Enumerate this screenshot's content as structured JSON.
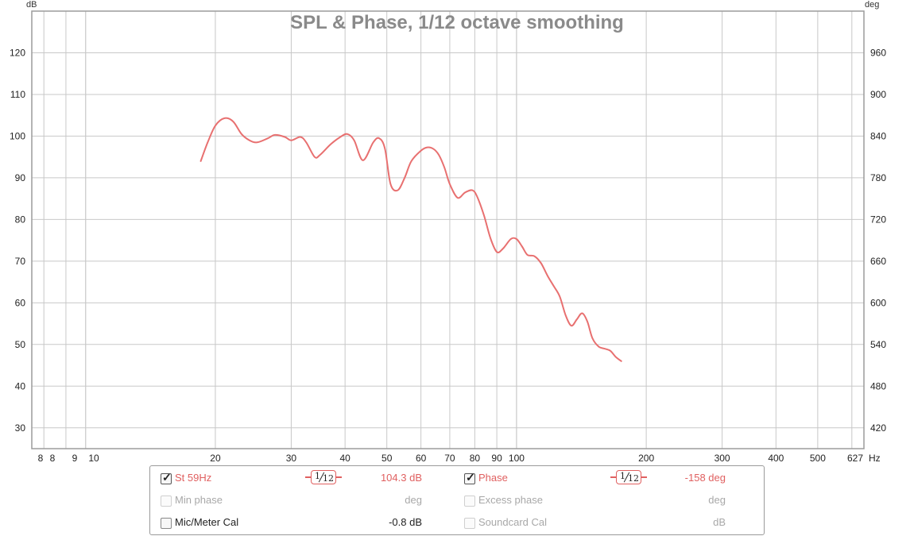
{
  "chart_data": {
    "type": "line",
    "title": "SPL & Phase, 1/12 octave smoothing",
    "x_unit": "Hz",
    "x_scale": "log",
    "x_range": [
      7.5,
      640
    ],
    "x_ticks": [
      "8",
      "8",
      "9",
      "10",
      "20",
      "30",
      "40",
      "50",
      "60",
      "70",
      "80",
      "90",
      "100",
      "200",
      "300",
      "400",
      "500",
      "627"
    ],
    "y_left_unit": "dB",
    "y_left_range": [
      25,
      130
    ],
    "y_left_ticks": [
      30,
      40,
      50,
      60,
      70,
      80,
      90,
      100,
      110,
      120
    ],
    "y_right_unit": "deg",
    "y_right_range": [
      390,
      1020
    ],
    "y_right_ticks": [
      420,
      480,
      540,
      600,
      660,
      720,
      780,
      840,
      900,
      960
    ],
    "grid": true,
    "series": [
      {
        "name": "St 59Hz",
        "color": "#e87070",
        "x": [
          18.5,
          19.2,
          20,
          21,
          22,
          23,
          24,
          25,
          26.5,
          27.5,
          29,
          30,
          31.5,
          32.5,
          34,
          35,
          37,
          39,
          40.5,
          42,
          44,
          46.5,
          48,
          49.5,
          51,
          53,
          55,
          57,
          60,
          62,
          64,
          66,
          68,
          70,
          73,
          76,
          79,
          81,
          84,
          87,
          90,
          93,
          97,
          100,
          103,
          106,
          110,
          114,
          118,
          122,
          126,
          130,
          134,
          138,
          142,
          146,
          150,
          155,
          160,
          165,
          170,
          175
        ],
        "values": [
          94,
          98.5,
          102.5,
          104.3,
          103.5,
          100.5,
          99,
          98.5,
          99.5,
          100.3,
          99.8,
          99,
          99.8,
          98.5,
          95,
          95.5,
          98,
          99.8,
          100.5,
          99,
          94.2,
          98.5,
          99.5,
          97,
          88.5,
          87,
          90,
          94,
          96.5,
          97.3,
          97,
          95.5,
          92.5,
          88.5,
          85.2,
          86.5,
          87,
          85.5,
          81,
          75.5,
          72.2,
          73,
          75.3,
          75.3,
          73.5,
          71.5,
          71.2,
          69.5,
          66.5,
          64,
          61.5,
          57,
          54.5,
          56,
          57.5,
          55.5,
          51.5,
          49.5,
          49,
          48.5,
          47,
          46
        ]
      }
    ]
  },
  "legend": {
    "row1": {
      "left_label": "St 59Hz",
      "left_checked": true,
      "left_smoothing": {
        "num": "1",
        "den": "12"
      },
      "left_value": "104.3 dB",
      "right_label": "Phase",
      "right_checked": true,
      "right_smoothing": {
        "num": "1",
        "den": "12"
      },
      "right_value": "-158 deg"
    },
    "row2": {
      "left_label": "Min phase",
      "left_value": "deg",
      "right_label": "Excess phase",
      "right_value": "deg"
    },
    "row3": {
      "left_label": "Mic/Meter Cal",
      "left_value": "-0.8 dB",
      "right_label": "Soundcard Cal",
      "right_value": "dB"
    }
  },
  "colors": {
    "accent": "#e06060",
    "disabled": "#a8a8a8",
    "grid": "#c8c8c8"
  }
}
